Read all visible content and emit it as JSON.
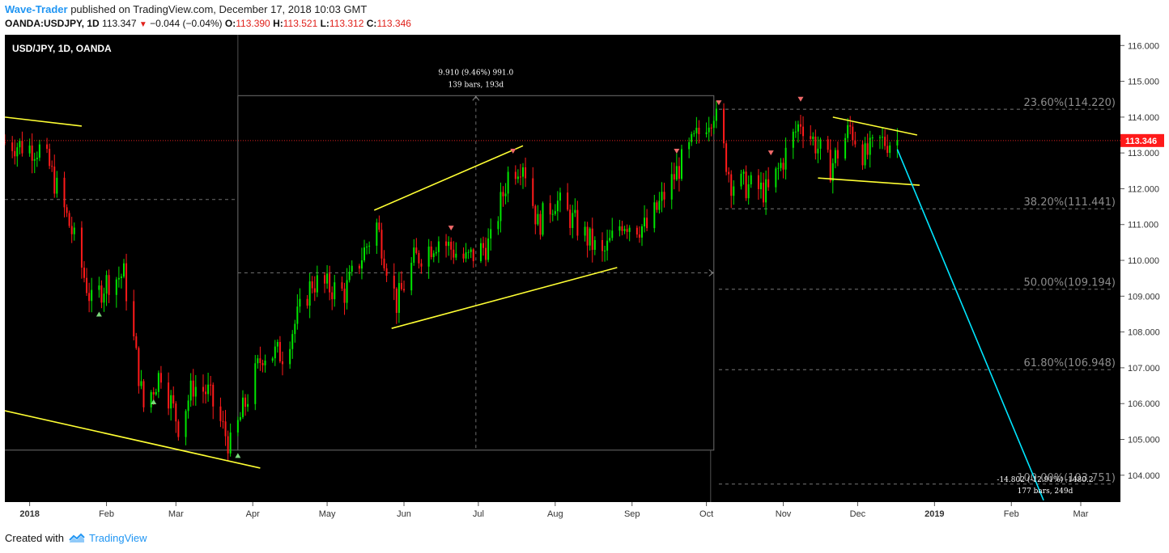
{
  "header": {
    "author": "Wave-Trader",
    "published_text": "published on TradingView.com, December 17, 2018 10:03 GMT",
    "symbol": "OANDA:USDJPY, 1D",
    "last": "113.347",
    "change": "−0.044 (−0.04%)",
    "open_label": "O:",
    "open": "113.390",
    "high_label": "H:",
    "high": "113.521",
    "low_label": "L:",
    "low": "113.312",
    "close_label": "C:",
    "close": "113.346"
  },
  "footer": {
    "created_with": "Created with",
    "brand": "TradingView"
  },
  "colors": {
    "bull": "#00e600",
    "bear": "#ff1a1a",
    "trend": "#ffff33",
    "projection": "#00e5ff",
    "background": "#000000",
    "price_tag": "#ff1a1a"
  },
  "chart_data": {
    "type": "candlestick",
    "title": "USD/JPY, 1D, OANDA",
    "ylim": [
      103.25,
      116.3
    ],
    "yticks": [
      "116.000",
      "115.000",
      "114.000",
      "113.000",
      "112.000",
      "111.000",
      "110.000",
      "109.000",
      "108.000",
      "107.000",
      "106.000",
      "105.000",
      "104.000"
    ],
    "xticks": [
      "2018",
      "Feb",
      "Mar",
      "Apr",
      "May",
      "Jun",
      "Jul",
      "Aug",
      "Sep",
      "Oct",
      "Nov",
      "Dec",
      "2019",
      "Feb",
      "Mar"
    ],
    "last_price_label": "113.346",
    "anchors": [
      {
        "date": "2017-12-22",
        "price": 113.3
      },
      {
        "date": "2018-01-05",
        "price": 113.1
      },
      {
        "date": "2018-01-09",
        "price": 112.6
      },
      {
        "date": "2018-01-18",
        "price": 110.8
      },
      {
        "date": "2018-01-26",
        "price": 108.8
      },
      {
        "date": "2018-02-01",
        "price": 109.4
      },
      {
        "date": "2018-02-08",
        "price": 109.6
      },
      {
        "date": "2018-02-16",
        "price": 105.9
      },
      {
        "date": "2018-02-23",
        "price": 106.9
      },
      {
        "date": "2018-03-02",
        "price": 105.4
      },
      {
        "date": "2018-03-08",
        "price": 106.5
      },
      {
        "date": "2018-03-14",
        "price": 106.3
      },
      {
        "date": "2018-03-23",
        "price": 104.8
      },
      {
        "date": "2018-03-26",
        "price": 105.4
      },
      {
        "date": "2018-04-05",
        "price": 107.4
      },
      {
        "date": "2018-04-13",
        "price": 107.4
      },
      {
        "date": "2018-04-25",
        "price": 109.4
      },
      {
        "date": "2018-05-08",
        "price": 109.1
      },
      {
        "date": "2018-05-21",
        "price": 111.0
      },
      {
        "date": "2018-05-29",
        "price": 108.8
      },
      {
        "date": "2018-06-05",
        "price": 110.0
      },
      {
        "date": "2018-06-15",
        "price": 110.6
      },
      {
        "date": "2018-06-26",
        "price": 110.0
      },
      {
        "date": "2018-07-06",
        "price": 110.5
      },
      {
        "date": "2018-07-13",
        "price": 112.4
      },
      {
        "date": "2018-07-19",
        "price": 112.8
      },
      {
        "date": "2018-07-25",
        "price": 111.0
      },
      {
        "date": "2018-08-01",
        "price": 111.7
      },
      {
        "date": "2018-08-13",
        "price": 110.7
      },
      {
        "date": "2018-08-20",
        "price": 110.1
      },
      {
        "date": "2018-08-28",
        "price": 111.1
      },
      {
        "date": "2018-09-07",
        "price": 110.9
      },
      {
        "date": "2018-09-20",
        "price": 112.6
      },
      {
        "date": "2018-10-01",
        "price": 113.9
      },
      {
        "date": "2018-10-04",
        "price": 114.2
      },
      {
        "date": "2018-10-11",
        "price": 112.2
      },
      {
        "date": "2018-10-26",
        "price": 111.9
      },
      {
        "date": "2018-11-08",
        "price": 113.9
      },
      {
        "date": "2018-11-20",
        "price": 112.6
      },
      {
        "date": "2018-11-28",
        "price": 113.7
      },
      {
        "date": "2018-12-04",
        "price": 112.9
      },
      {
        "date": "2018-12-10",
        "price": 113.3
      },
      {
        "date": "2018-12-17",
        "price": 113.35
      }
    ],
    "fibonacci": [
      {
        "label": "23.60%(114.220)",
        "price": 114.22
      },
      {
        "label": "38.20%(111.441)",
        "price": 111.441
      },
      {
        "label": "50.00%(109.194)",
        "price": 109.194
      },
      {
        "label": "61.80%(106.948)",
        "price": 106.948
      },
      {
        "label": "100.00%(103.751)",
        "price": 103.751
      }
    ],
    "measure_up": {
      "line1": "9.910 (9.46%) 991.0",
      "line2": "139 bars, 193d",
      "from": {
        "date": "2018-03-26",
        "price": 104.7
      },
      "to": {
        "date": "2018-10-04",
        "price": 114.6
      }
    },
    "measure_down": {
      "line1": "-14.802 (-12.91%) -1480.2",
      "line2": "177 bars, 249d"
    },
    "trendlines": [
      {
        "from": {
          "date": "2017-12-22",
          "price": 114.0
        },
        "to": {
          "date": "2018-01-22",
          "price": 113.75
        }
      },
      {
        "from": {
          "date": "2017-12-22",
          "price": 105.8
        },
        "to": {
          "date": "2018-04-04",
          "price": 104.2
        }
      },
      {
        "from": {
          "date": "2018-05-20",
          "price": 111.4
        },
        "to": {
          "date": "2018-07-19",
          "price": 113.2
        }
      },
      {
        "from": {
          "date": "2018-05-27",
          "price": 108.1
        },
        "to": {
          "date": "2018-08-26",
          "price": 109.8
        }
      },
      {
        "from": {
          "date": "2018-11-21",
          "price": 114.0
        },
        "to": {
          "date": "2018-12-25",
          "price": 113.5
        }
      },
      {
        "from": {
          "date": "2018-11-15",
          "price": 112.3
        },
        "to": {
          "date": "2018-12-26",
          "price": 112.1
        }
      }
    ],
    "projection": {
      "from": {
        "date": "2018-12-17",
        "price": 113.1
      },
      "to": {
        "date": "2019-02-14",
        "price": 103.3
      }
    },
    "signals": [
      {
        "date": "2018-01-29",
        "price": 108.5,
        "dir": "up"
      },
      {
        "date": "2018-02-20",
        "price": 106.05,
        "dir": "up"
      },
      {
        "date": "2018-03-26",
        "price": 104.55,
        "dir": "up"
      },
      {
        "date": "2018-06-20",
        "price": 110.9,
        "dir": "down"
      },
      {
        "date": "2018-07-15",
        "price": 113.05,
        "dir": "down"
      },
      {
        "date": "2018-09-19",
        "price": 113.05,
        "dir": "down"
      },
      {
        "date": "2018-10-06",
        "price": 114.4,
        "dir": "down"
      },
      {
        "date": "2018-10-27",
        "price": 113.0,
        "dir": "down"
      },
      {
        "date": "2018-11-08",
        "price": 114.5,
        "dir": "down"
      }
    ]
  }
}
